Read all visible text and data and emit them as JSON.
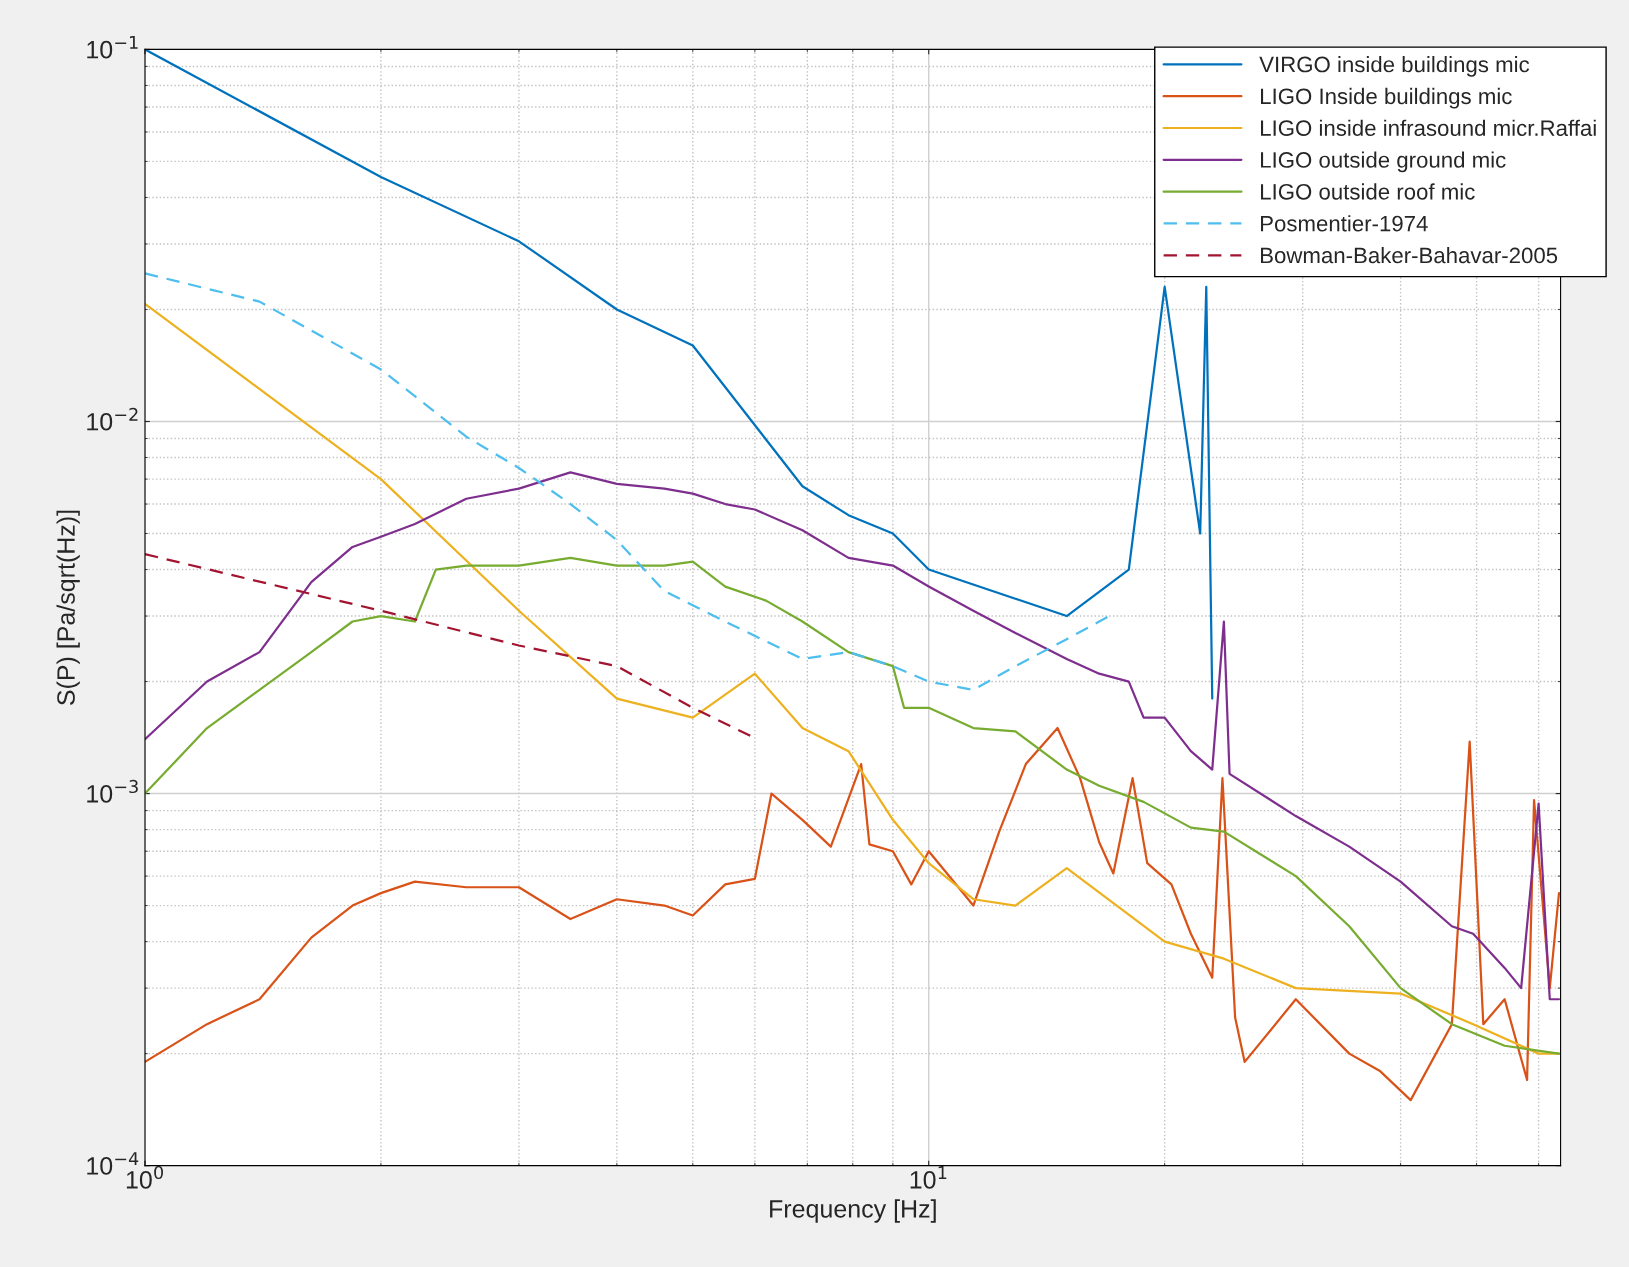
{
  "chart_data": {
    "type": "line",
    "xlabel": "Frequency [Hz]",
    "ylabel": "S(P) [Pa/sqrt(Hz)]",
    "log": "xy",
    "grid": true,
    "legend": "top right",
    "xlim": [
      1,
      64
    ],
    "ylim": [
      0.0001,
      0.1
    ],
    "xticks": [
      {
        "value": 1,
        "label": "10$^{0}$"
      },
      {
        "value": 10,
        "label": "10$^{1}$"
      }
    ],
    "yticks": [
      {
        "value": 0.0001,
        "label": "10$^{−4}$"
      },
      {
        "value": 0.001,
        "label": "10$^{−3}$"
      },
      {
        "value": 0.01,
        "label": "10$^{−2}$"
      },
      {
        "value": 0.1,
        "label": "10$^{−1}$"
      }
    ],
    "series": [
      {
        "name": "VIRGO inside buildings mic",
        "color": "#0072bd",
        "line_style": "solid",
        "x": [
          1,
          2,
          3,
          4,
          5,
          6.9,
          7.9,
          9,
          10,
          15,
          18,
          20,
          22.2,
          22.6,
          23
        ],
        "values": [
          0.1,
          0.0454,
          0.0305,
          0.02,
          0.016,
          0.0067,
          0.0056,
          0.005,
          0.004,
          0.003,
          0.004,
          0.023,
          0.005,
          0.023,
          0.0018
        ]
      },
      {
        "name": "LIGO Inside buildings mic",
        "color": "#d95319",
        "line_style": "solid",
        "x": [
          1,
          1.2,
          1.4,
          1.63,
          1.84,
          2,
          2.21,
          2.57,
          3,
          3.49,
          4,
          4.6,
          5,
          5.5,
          6,
          6.3,
          6.9,
          7.5,
          8.2,
          8.4,
          9,
          9.5,
          10,
          11.4,
          12.3,
          13.3,
          14.6,
          15.6,
          16.5,
          17.2,
          18.2,
          19,
          20.4,
          21.6,
          23,
          23.7,
          24.6,
          25.3,
          29.4,
          34.4,
          37.6,
          41.2,
          46.5,
          49,
          51,
          54.3,
          58,
          59.2,
          62,
          63.7
        ],
        "values": [
          0.00019,
          0.00024,
          0.00028,
          0.00041,
          0.0005,
          0.00054,
          0.00058,
          0.00056,
          0.00056,
          0.00046,
          0.00052,
          0.0005,
          0.00047,
          0.00057,
          0.00059,
          0.001,
          0.00085,
          0.00072,
          0.0012,
          0.00073,
          0.0007,
          0.00057,
          0.0007,
          0.0005,
          0.00079,
          0.0012,
          0.0015,
          0.0011,
          0.00074,
          0.00061,
          0.0011,
          0.00065,
          0.00057,
          0.00042,
          0.00032,
          0.0011,
          0.00025,
          0.00019,
          0.00028,
          0.0002,
          0.00018,
          0.00015,
          0.00024,
          0.00138,
          0.00024,
          0.00028,
          0.00017,
          0.00096,
          0.0003,
          0.00054
        ]
      },
      {
        "name": "LIGO inside infrasound micr.Raffai",
        "color": "#edb120",
        "line_style": "solid",
        "x": [
          1,
          2,
          3,
          4,
          5,
          6,
          6.9,
          7.9,
          9,
          10,
          11.4,
          12.9,
          15,
          20,
          23.8,
          29.4,
          40,
          49.5,
          60,
          63.7
        ],
        "values": [
          0.0207,
          0.007,
          0.0031,
          0.0018,
          0.0016,
          0.0021,
          0.0015,
          0.0013,
          0.00085,
          0.00065,
          0.00052,
          0.0005,
          0.00063,
          0.0004,
          0.00036,
          0.0003,
          0.00029,
          0.00024,
          0.0002,
          0.0002
        ]
      },
      {
        "name": "LIGO outside ground mic",
        "color": "#7e2f8e",
        "line_style": "solid",
        "x": [
          1,
          1.2,
          1.4,
          1.63,
          1.84,
          2,
          2.21,
          2.57,
          3,
          3.49,
          4,
          4.6,
          5,
          5.5,
          6,
          6.9,
          7.9,
          9,
          10,
          11.4,
          12.9,
          15,
          16.5,
          18,
          18.8,
          20,
          21.6,
          23,
          23.8,
          24.2,
          29.4,
          34.4,
          40,
          46.5,
          49.5,
          54.3,
          57,
          60,
          62,
          63.7
        ],
        "values": [
          0.0014,
          0.002,
          0.0024,
          0.0037,
          0.0046,
          0.0049,
          0.0053,
          0.0062,
          0.0066,
          0.0073,
          0.0068,
          0.0066,
          0.0064,
          0.006,
          0.0058,
          0.0051,
          0.0043,
          0.0041,
          0.0036,
          0.0031,
          0.0027,
          0.0023,
          0.0021,
          0.002,
          0.0016,
          0.0016,
          0.0013,
          0.00116,
          0.0029,
          0.00113,
          0.00087,
          0.00072,
          0.00058,
          0.00044,
          0.00042,
          0.00034,
          0.0003,
          0.00094,
          0.00028,
          0.00028
        ]
      },
      {
        "name": "LIGO outside roof mic",
        "color": "#77ac30",
        "line_style": "solid",
        "x": [
          1,
          1.2,
          1.4,
          1.63,
          1.84,
          2,
          2.21,
          2.35,
          2.57,
          3,
          3.49,
          4,
          4.6,
          5,
          5.5,
          6.2,
          6.9,
          7.9,
          9,
          9.3,
          10,
          11.4,
          12.9,
          15,
          16.5,
          18.8,
          21.6,
          23.8,
          29.4,
          34.4,
          40,
          46.5,
          54.3,
          63.7
        ],
        "values": [
          0.001,
          0.0015,
          0.0019,
          0.0024,
          0.0029,
          0.003,
          0.0029,
          0.004,
          0.0041,
          0.0041,
          0.0043,
          0.0041,
          0.0041,
          0.0042,
          0.0036,
          0.0033,
          0.0029,
          0.0024,
          0.0022,
          0.0017,
          0.0017,
          0.0015,
          0.00147,
          0.00116,
          0.00105,
          0.00095,
          0.00081,
          0.00079,
          0.0006,
          0.00044,
          0.0003,
          0.00024,
          0.00021,
          0.0002
        ]
      },
      {
        "name": "Posmentier-1974",
        "color": "#4dbeee",
        "line_style": "dashed",
        "x": [
          1,
          1.4,
          2,
          2.57,
          3,
          3.49,
          4,
          4.6,
          5.5,
          6.9,
          7.9,
          9,
          10,
          11.4,
          12.9,
          15,
          17
        ],
        "values": [
          0.025,
          0.021,
          0.0138,
          0.0091,
          0.0075,
          0.006,
          0.0048,
          0.0035,
          0.0029,
          0.0023,
          0.0024,
          0.0022,
          0.002,
          0.0019,
          0.0022,
          0.0026,
          0.003
        ]
      },
      {
        "name": "Bowman-Baker-Bahavar-2005",
        "color": "#a2142f",
        "line_style": "dashed",
        "x": [
          1,
          2,
          3,
          4,
          5,
          6
        ],
        "values": [
          0.0044,
          0.0031,
          0.0025,
          0.0022,
          0.0017,
          0.00141
        ]
      }
    ]
  }
}
